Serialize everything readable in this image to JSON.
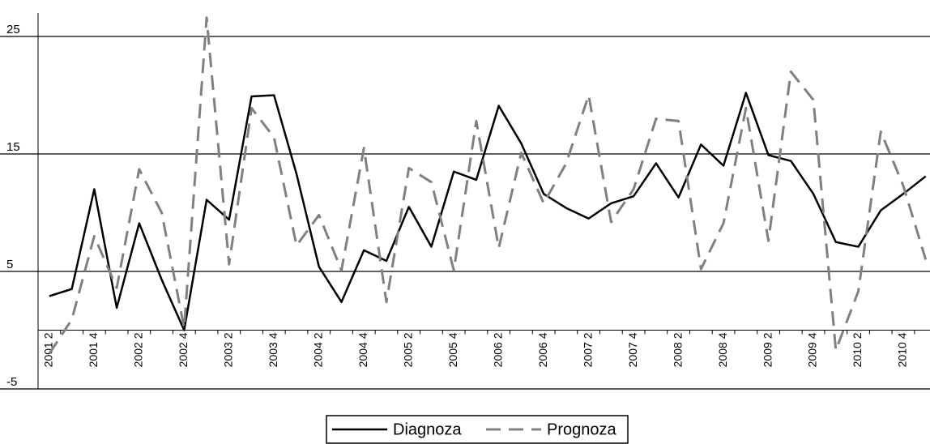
{
  "chart_data": {
    "type": "line",
    "categories": [
      "2001 2",
      null,
      "2001 4",
      null,
      "2002 2",
      null,
      "2002 4",
      null,
      "2003 2",
      null,
      "2003 4",
      null,
      "2004 2",
      null,
      "2004 4",
      null,
      "2005 2",
      null,
      "2005 4",
      null,
      "2006 2",
      null,
      "2006 4",
      null,
      "2007 2",
      null,
      "2007 4",
      null,
      "2008 2",
      null,
      "2008 4",
      null,
      "2009 2",
      null,
      "2009 4",
      null,
      "2010 2",
      null,
      "2010 4",
      null
    ],
    "series": [
      {
        "name": "Diagnoza",
        "color": "#000000",
        "dashed": false,
        "values": [
          2.9,
          3.5,
          12.0,
          1.9,
          9.1,
          4.3,
          0.0,
          11.1,
          9.4,
          19.9,
          20.0,
          13.3,
          5.4,
          2.4,
          6.8,
          5.9,
          10.5,
          7.1,
          13.5,
          12.8,
          19.1,
          15.9,
          11.6,
          10.4,
          9.5,
          10.8,
          11.4,
          14.2,
          11.3,
          15.8,
          14.0,
          20.2,
          14.9,
          14.4,
          11.6,
          7.5,
          7.1,
          10.2,
          11.6,
          13.1
        ]
      },
      {
        "name": "Prognoza",
        "color": "#808080",
        "dashed": true,
        "values": [
          -2.0,
          0.9,
          8.0,
          3.6,
          13.7,
          10.0,
          0.2,
          26.6,
          5.6,
          18.9,
          16.4,
          7.2,
          9.8,
          5.1,
          15.5,
          2.4,
          13.8,
          12.6,
          5.1,
          17.8,
          7.0,
          15.1,
          10.8,
          14.2,
          20.0,
          9.2,
          12.0,
          18.0,
          17.8,
          5.2,
          9.1,
          18.9,
          7.6,
          22.0,
          19.6,
          -1.7,
          3.3,
          16.9,
          12.3,
          6.0
        ]
      }
    ],
    "ylim": [
      -5,
      27
    ],
    "yticks": [
      -5,
      5,
      15,
      25
    ],
    "grid": true,
    "legend": "bottom"
  }
}
